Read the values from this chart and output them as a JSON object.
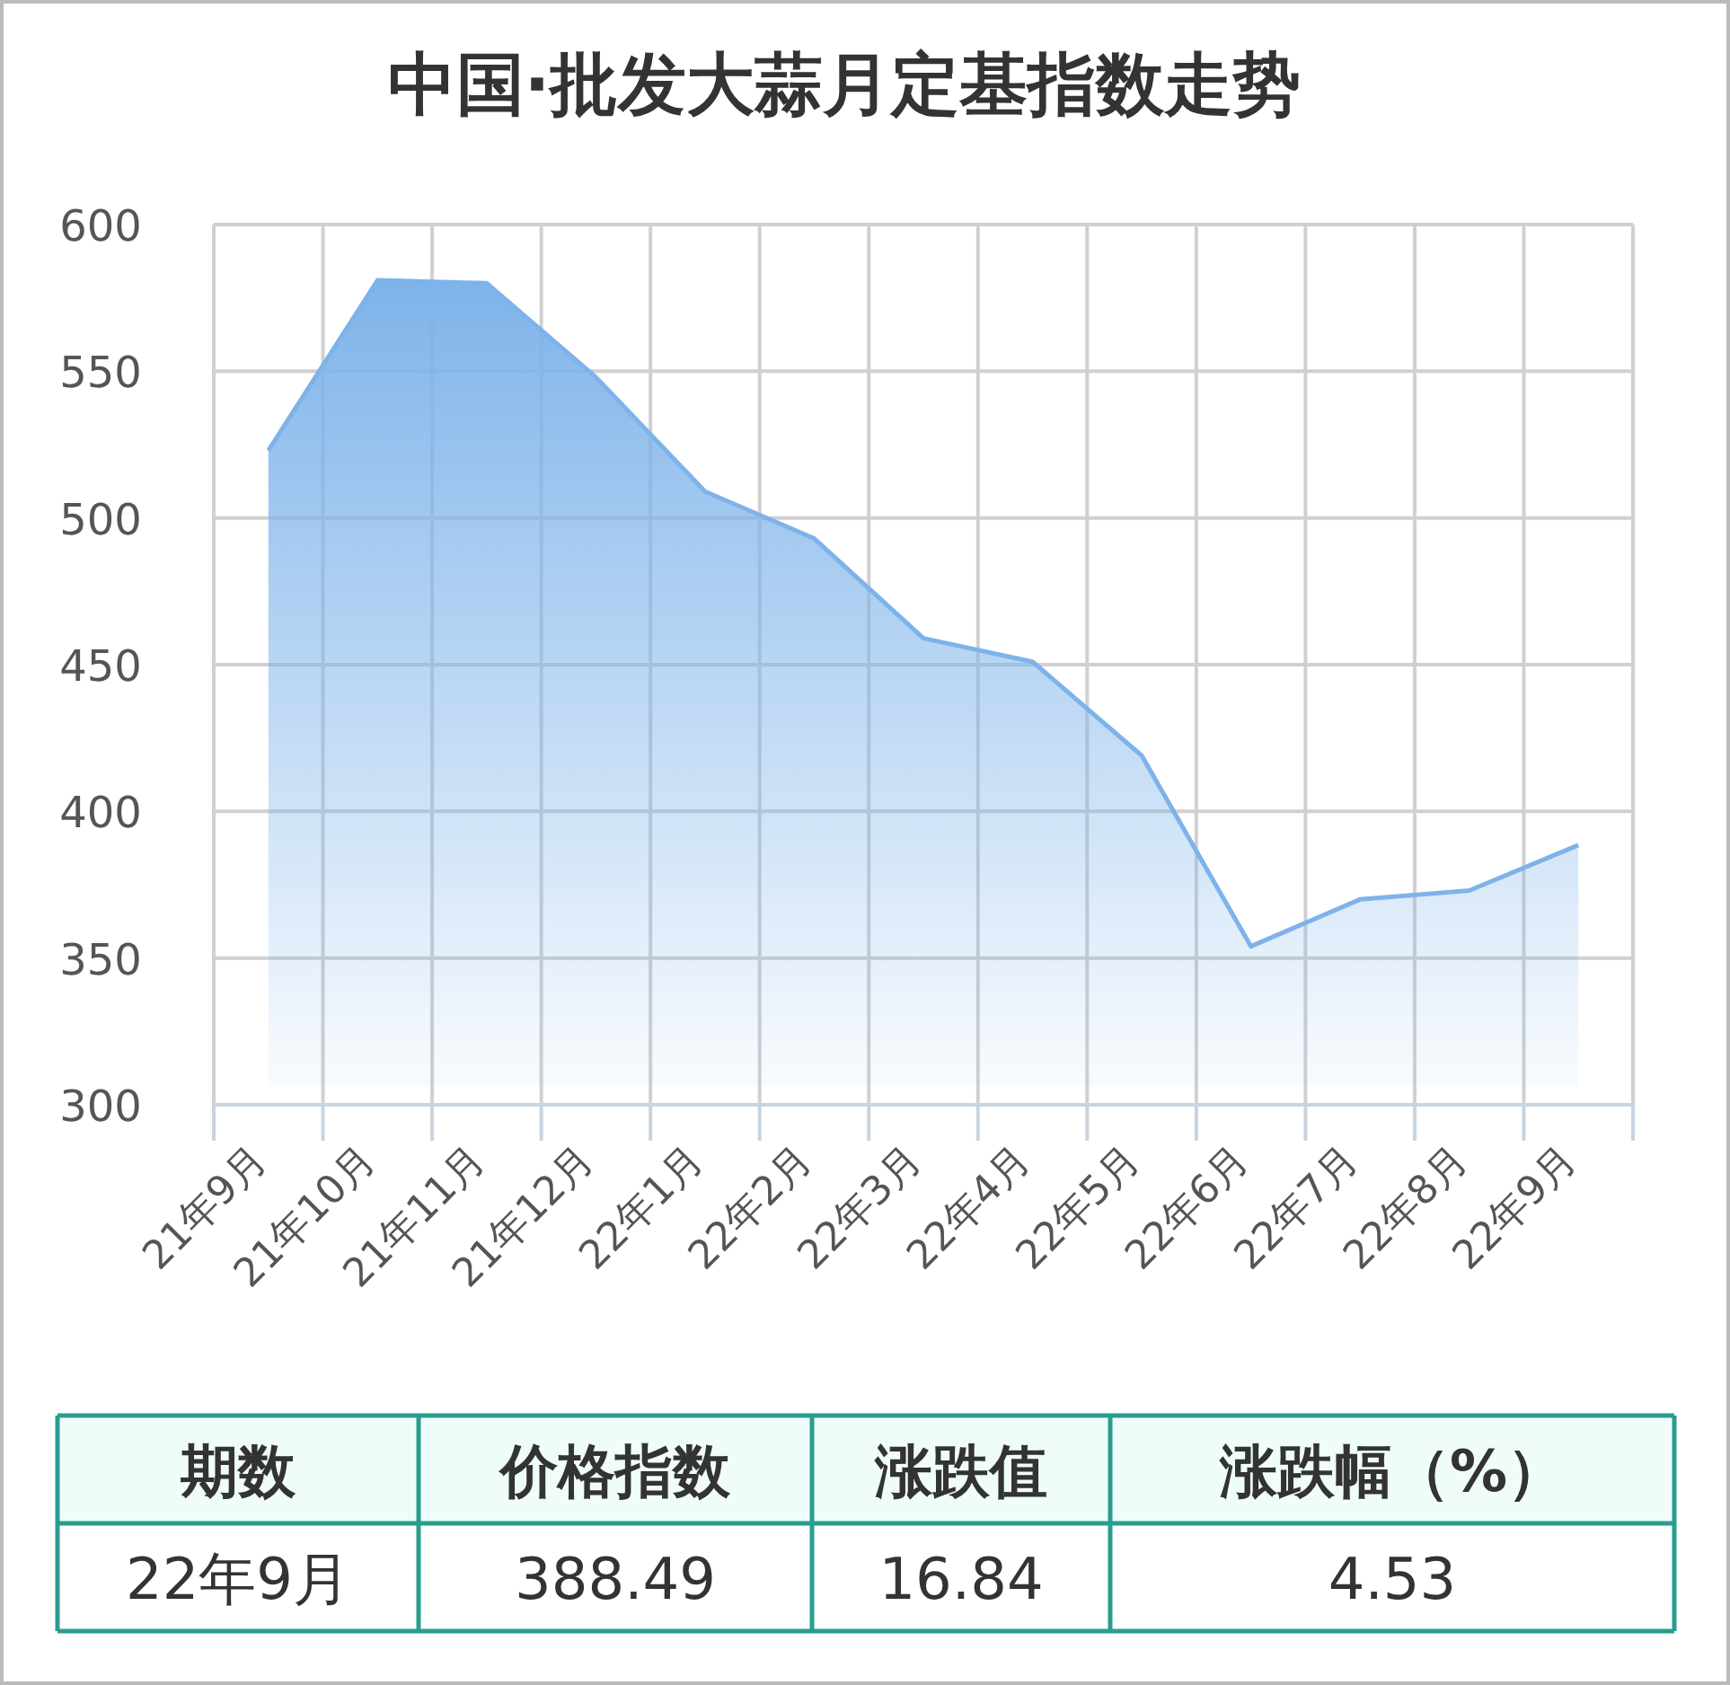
{
  "chart_data": {
    "type": "area",
    "title": "中国·批发大蒜月定基指数走势",
    "categories": [
      "21年9月",
      "21年10月",
      "21年11月",
      "21年12月",
      "22年1月",
      "22年2月",
      "22年3月",
      "22年4月",
      "22年5月",
      "22年6月",
      "22年7月",
      "22年8月",
      "22年9月"
    ],
    "series": [
      {
        "color": "#7eb3ea",
        "values": [
          523,
          581,
          580,
          548,
          509,
          493,
          459,
          451,
          419,
          354,
          370,
          373,
          388.49
        ]
      }
    ],
    "ylim": [
      300,
      600
    ],
    "yticks": [
      300,
      350,
      400,
      450,
      500,
      550,
      600
    ],
    "grid": true,
    "annotations": [
      "期数",
      "价格指数",
      "涨跌值",
      "涨跌幅（%）",
      "22年9月",
      "388.49",
      "16.84",
      "4.53"
    ]
  }
}
